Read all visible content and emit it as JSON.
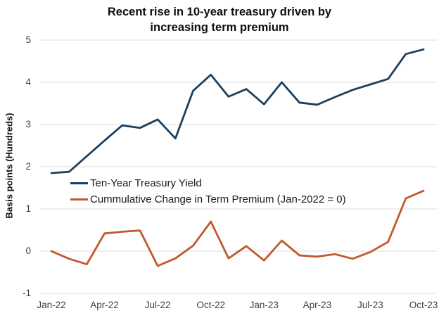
{
  "title": {
    "line1": "Recent rise in 10-year treasury driven by",
    "line2": "increasing term premium"
  },
  "y_axis": {
    "label": "Basis points (Hundreds)"
  },
  "legend": [
    {
      "label": "Ten-Year Treasury Yield",
      "color": "#1d3f5e"
    },
    {
      "label": "Cummulative Change in Term Premium (Jan-2022 = 0)",
      "color": "#c3582c"
    }
  ],
  "chart_data": {
    "type": "line",
    "title": "Recent rise in 10-year treasury driven by increasing term premium",
    "ylabel": "Basis points (Hundreds)",
    "ylim": [
      -1,
      5
    ],
    "y_ticks": [
      5,
      4,
      3,
      2,
      1,
      0,
      -1
    ],
    "x_tick_labels": [
      "Jan-22",
      "Apr-22",
      "Jul-22",
      "Oct-22",
      "Jan-23",
      "Apr-23",
      "Jul-23",
      "Oct-23"
    ],
    "x_tick_month_index": [
      0,
      3,
      6,
      9,
      12,
      15,
      18,
      21
    ],
    "x": [
      "Jan-22",
      "Feb-22",
      "Mar-22",
      "Apr-22",
      "May-22",
      "Jun-22",
      "Jul-22",
      "Aug-22",
      "Sep-22",
      "Oct-22",
      "Nov-22",
      "Dec-22",
      "Jan-23",
      "Feb-23",
      "Mar-23",
      "Apr-23",
      "May-23",
      "Jun-23",
      "Jul-23",
      "Aug-23",
      "Sep-23",
      "Oct-23"
    ],
    "series": [
      {
        "name": "Ten-Year Treasury Yield",
        "color": "#1d3f5e",
        "values": [
          1.85,
          1.88,
          2.25,
          2.62,
          2.98,
          2.92,
          3.12,
          2.67,
          3.8,
          4.18,
          3.66,
          3.84,
          3.48,
          4.0,
          3.52,
          3.47,
          3.65,
          3.82,
          3.95,
          4.08,
          4.67,
          4.78
        ]
      },
      {
        "name": "Cummulative Change in Term Premium (Jan-2022 = 0)",
        "color": "#c3582c",
        "values": [
          0.0,
          -0.18,
          -0.31,
          0.42,
          0.46,
          0.49,
          -0.35,
          -0.17,
          0.13,
          0.7,
          -0.17,
          0.12,
          -0.22,
          0.25,
          -0.1,
          -0.13,
          -0.07,
          -0.18,
          -0.02,
          0.22,
          1.25,
          1.43
        ]
      }
    ],
    "grid": "horizontal-only",
    "legend_position": "inside-left",
    "gridline_color": "#dedede"
  }
}
